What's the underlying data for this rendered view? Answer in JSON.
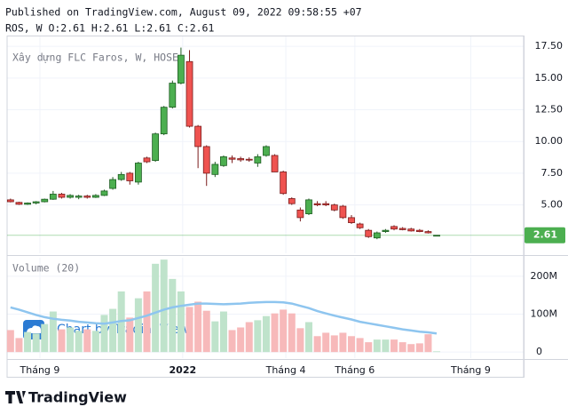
{
  "header": {
    "published": "Published on TradingView.com, August 09, 2022 09:58:55 +07",
    "symbol_line": "ROS, W O:2.61 H:2.61 L:2.61 C:2.61"
  },
  "footer": {
    "brand": "TradingView"
  },
  "chart_data": {
    "type": "candlestick",
    "title": "Xây dựng FLC Faros, W, HOSE",
    "watermark": "Chart by TradingView",
    "grid": true,
    "xlim": [
      -0.4,
      60.2
    ],
    "xticks": [
      {
        "value": 3.45,
        "label": "Tháng 9"
      },
      {
        "value": 20.2,
        "label": "2022"
      },
      {
        "value": 32.3,
        "label": "Tháng 4"
      },
      {
        "value": 40.4,
        "label": "Tháng 6"
      },
      {
        "value": 54.0,
        "label": "Tháng 9"
      }
    ],
    "ylim": [
      1.19,
      18.35
    ],
    "yticks": [
      {
        "value": 5,
        "label": "5.00"
      },
      {
        "value": 7.5,
        "label": "7.50"
      },
      {
        "value": 10,
        "label": "10.00"
      },
      {
        "value": 12.5,
        "label": "12.50"
      },
      {
        "value": 15,
        "label": "15.00"
      },
      {
        "value": 17.5,
        "label": "17.50"
      }
    ],
    "last_price": 2.61,
    "last_price_color": "#4caf50",
    "up_color": "#4caf50",
    "up_border": "#1e5d22",
    "down_color": "#ef5350",
    "down_border": "#7a1c1c",
    "ohlc": {
      "open": [
        5.4,
        5.2,
        5.05,
        5.15,
        5.25,
        5.45,
        5.85,
        5.6,
        5.6,
        5.7,
        5.6,
        5.75,
        6.3,
        7.0,
        7.5,
        6.8,
        8.7,
        8.5,
        10.6,
        12.7,
        14.6,
        16.3,
        11.2,
        9.6,
        7.4,
        8.1,
        8.7,
        8.65,
        8.6,
        8.3,
        8.9,
        8.9,
        7.6,
        5.5,
        4.6,
        4.3,
        5.1,
        5.1,
        5.0,
        4.9,
        4.0,
        3.5,
        3.0,
        2.4,
        2.9,
        3.3,
        3.15,
        3.1,
        3.0,
        2.9,
        2.61
      ],
      "high": [
        5.5,
        5.25,
        5.2,
        5.3,
        5.5,
        6.1,
        5.95,
        5.85,
        5.8,
        5.8,
        5.85,
        6.2,
        7.2,
        7.6,
        7.6,
        8.4,
        8.8,
        10.7,
        12.8,
        14.8,
        17.4,
        17.2,
        11.3,
        9.7,
        8.4,
        8.9,
        8.9,
        8.8,
        8.75,
        9.0,
        9.7,
        9.0,
        7.7,
        5.6,
        4.8,
        5.5,
        5.3,
        5.3,
        5.1,
        5.0,
        4.2,
        3.6,
        3.1,
        2.9,
        3.1,
        3.4,
        3.25,
        3.2,
        3.1,
        3.0,
        2.61
      ],
      "low": [
        5.2,
        5.0,
        5.0,
        5.05,
        5.2,
        5.4,
        5.5,
        5.5,
        5.45,
        5.5,
        5.55,
        5.7,
        6.2,
        6.9,
        6.6,
        6.6,
        8.3,
        8.4,
        10.5,
        12.6,
        14.5,
        11.1,
        7.9,
        6.5,
        7.2,
        8.0,
        8.3,
        8.4,
        8.4,
        8.0,
        8.8,
        7.6,
        5.8,
        5.0,
        3.7,
        4.2,
        4.9,
        4.9,
        4.5,
        3.9,
        3.5,
        3.1,
        2.4,
        2.3,
        2.8,
        3.0,
        3.0,
        2.9,
        2.85,
        2.75,
        2.61
      ],
      "close": [
        5.25,
        5.05,
        5.15,
        5.25,
        5.45,
        5.85,
        5.6,
        5.75,
        5.7,
        5.6,
        5.75,
        6.1,
        7.0,
        7.4,
        6.9,
        8.3,
        8.4,
        10.6,
        12.7,
        14.6,
        16.8,
        11.2,
        9.6,
        7.5,
        8.2,
        8.8,
        8.6,
        8.55,
        8.55,
        8.8,
        9.6,
        7.6,
        5.9,
        5.1,
        4.0,
        5.4,
        5.0,
        5.0,
        4.6,
        4.0,
        3.6,
        3.2,
        2.5,
        2.8,
        3.0,
        3.1,
        3.05,
        2.95,
        2.9,
        2.8,
        2.61
      ]
    },
    "volume": {
      "name": "Volume (20)",
      "up_color": "#bfe3cb",
      "down_color": "#f7b9ba",
      "ma_color": "#8ec5ef",
      "ylim": [
        -16000000,
        249000000
      ],
      "yticks": [
        0,
        {
          "value": 100000000,
          "label": "100M"
        },
        {
          "value": 200000000,
          "label": "200M"
        }
      ],
      "values": [
        58000000,
        37000000,
        53000000,
        49000000,
        74000000,
        107000000,
        60000000,
        65000000,
        56000000,
        60000000,
        56000000,
        98000000,
        114000000,
        160000000,
        91000000,
        142000000,
        160000000,
        233000000,
        244000000,
        193000000,
        160000000,
        119000000,
        133000000,
        109000000,
        81000000,
        107000000,
        58000000,
        65000000,
        79000000,
        84000000,
        95000000,
        102000000,
        112000000,
        102000000,
        63000000,
        79000000,
        42000000,
        51000000,
        44000000,
        51000000,
        42000000,
        37000000,
        26000000,
        33000000,
        33000000,
        33000000,
        26000000,
        21000000,
        23000000,
        47000000,
        2000000
      ],
      "ma_values": [
        118000000,
        112000000,
        105000000,
        98000000,
        92000000,
        88000000,
        85000000,
        83000000,
        80000000,
        78000000,
        76000000,
        75000000,
        78000000,
        82000000,
        84000000,
        90000000,
        96000000,
        104000000,
        112000000,
        118000000,
        122000000,
        125000000,
        128000000,
        128000000,
        127000000,
        126000000,
        127000000,
        128000000,
        130000000,
        131000000,
        132000000,
        132000000,
        131000000,
        128000000,
        122000000,
        116000000,
        108000000,
        102000000,
        96000000,
        91000000,
        86000000,
        80000000,
        76000000,
        72000000,
        68000000,
        64000000,
        60000000,
        57000000,
        54000000,
        52000000,
        49000000
      ]
    }
  }
}
